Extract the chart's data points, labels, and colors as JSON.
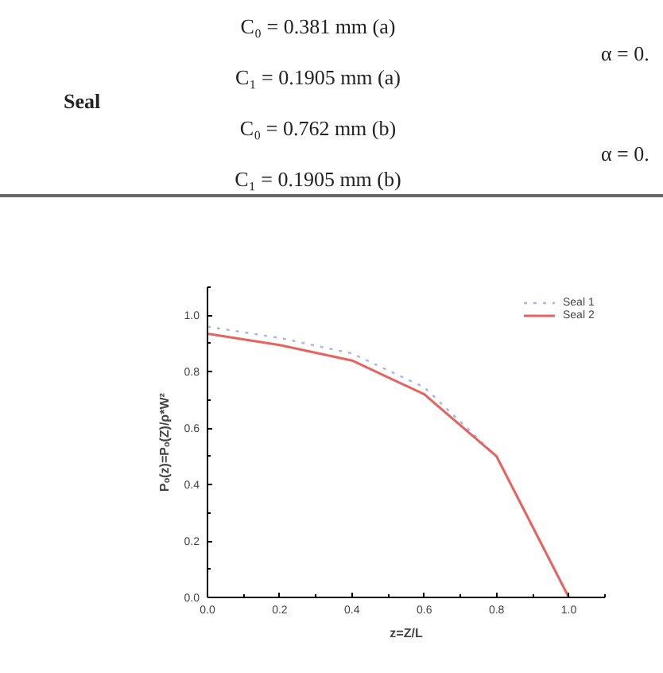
{
  "chart_data": {
    "type": "line",
    "xlabel": "z=Z/L",
    "ylabel": "Pₒ(z)=Pₒ(Z)/ρ*W²",
    "annotations": [
      "C₀ = 0.381 mm (a)",
      "C₁ = 0.1905 mm (a)",
      "Seal",
      "C₀ = 0.762 mm (b)",
      "C₁ = 0.1905 mm (b)",
      "α = 0.",
      "α = 0."
    ],
    "x": [
      0.0,
      0.2,
      0.4,
      0.6,
      0.8,
      1.0
    ],
    "series": [
      {
        "name": "Seal 1",
        "color": "#a9b4e6",
        "line_style": "dotted",
        "values": [
          0.96,
          0.92,
          0.865,
          0.745,
          0.5,
          0.0
        ]
      },
      {
        "name": "Seal 2",
        "color": "#e8625e",
        "line_style": "solid",
        "values": [
          0.935,
          0.895,
          0.84,
          0.72,
          0.5,
          0.0
        ]
      }
    ],
    "xlim": [
      0,
      1.1
    ],
    "ylim": [
      0,
      1.1
    ],
    "xticks": [
      {
        "value": 0,
        "label": "0.0"
      },
      0.2,
      0.4,
      0.6,
      0.8,
      {
        "value": 1,
        "label": "1.0"
      }
    ],
    "yticks": [
      {
        "value": 0,
        "label": "0.0"
      },
      0.2,
      0.4,
      0.6,
      0.8,
      {
        "value": 1,
        "label": "1.0"
      }
    ],
    "grid": false,
    "legend": "top right"
  }
}
